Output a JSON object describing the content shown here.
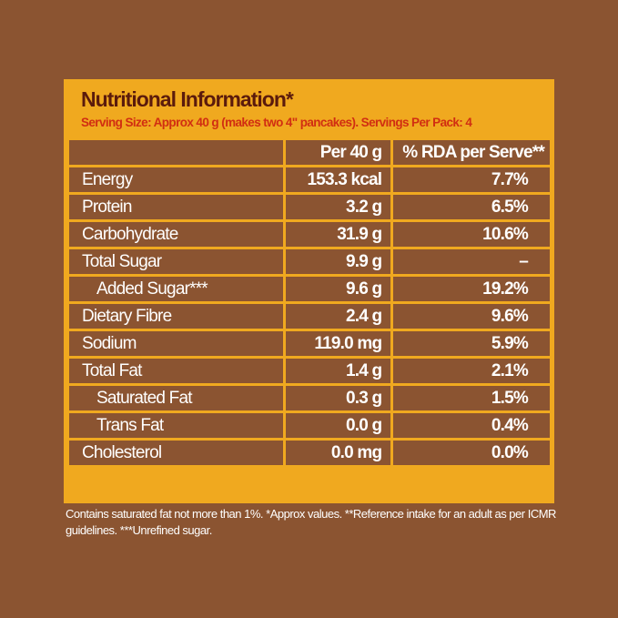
{
  "title": "Nutritional Information*",
  "subtitle": "Serving Size: Approx 40 g (makes two 4\" pancakes). Servings Per Pack: 4",
  "columns": [
    "",
    "Per 40 g",
    "% RDA per Serve**"
  ],
  "rows": [
    {
      "label": "Energy",
      "value": "153.3 kcal",
      "rda": "7.7%",
      "indent": false
    },
    {
      "label": "Protein",
      "value": "3.2 g",
      "rda": "6.5%",
      "indent": false
    },
    {
      "label": "Carbohydrate",
      "value": "31.9 g",
      "rda": "10.6%",
      "indent": false
    },
    {
      "label": "Total Sugar",
      "value": "9.9 g",
      "rda": "–",
      "indent": false
    },
    {
      "label": "Added Sugar***",
      "value": "9.6 g",
      "rda": "19.2%",
      "indent": true
    },
    {
      "label": "Dietary Fibre",
      "value": "2.4 g",
      "rda": "9.6%",
      "indent": false
    },
    {
      "label": "Sodium",
      "value": "119.0 mg",
      "rda": "5.9%",
      "indent": false
    },
    {
      "label": "Total Fat",
      "value": "1.4 g",
      "rda": "2.1%",
      "indent": false
    },
    {
      "label": "Saturated Fat",
      "value": "0.3 g",
      "rda": "1.5%",
      "indent": true
    },
    {
      "label": "Trans Fat",
      "value": "0.0 g",
      "rda": "0.4%",
      "indent": true
    },
    {
      "label": "Cholesterol",
      "value": "0.0 mg",
      "rda": "0.0%",
      "indent": false
    }
  ],
  "footnote": "Contains saturated fat not more than 1%. *Approx values. **Reference intake for an adult as per ICMR guidelines. ***Unrefined sugar.",
  "colors": {
    "background": "#8B5431",
    "panel": "#F0A91F",
    "title": "#5B1B0C",
    "subtitle": "#D12E12"
  }
}
